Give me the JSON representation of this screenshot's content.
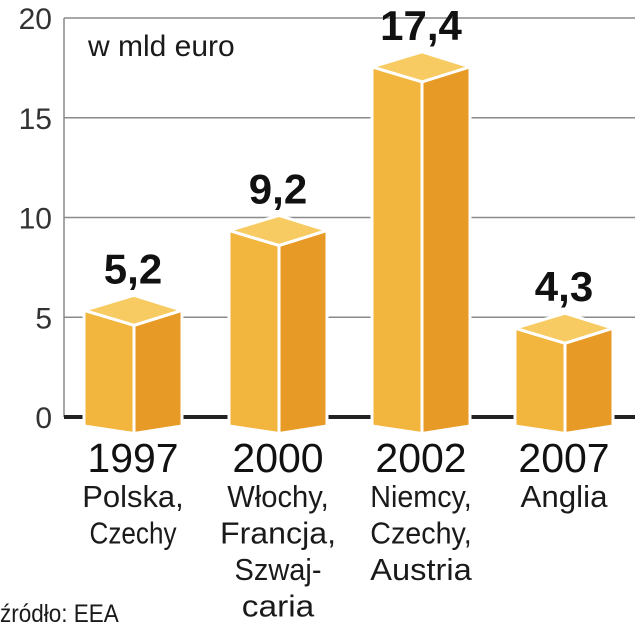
{
  "chart_data": {
    "type": "bar",
    "unit_label": "w mld euro",
    "categories": [
      "1997",
      "2000",
      "2002",
      "2007"
    ],
    "category_sublabels": [
      [
        "Polska,",
        "Czechy"
      ],
      [
        "Włochy,",
        "Francja,",
        "Szwaj-",
        "caria"
      ],
      [
        "Niemcy,",
        "Czechy,",
        "Austria"
      ],
      [
        "Anglia"
      ]
    ],
    "values": [
      5.2,
      9.2,
      17.4,
      4.3
    ],
    "value_labels": [
      "5,2",
      "9,2",
      "17,4",
      "4,3"
    ],
    "ylim": [
      0,
      20
    ],
    "yticks": [
      0,
      5,
      10,
      15,
      20
    ],
    "ytick_labels": [
      "0",
      "5",
      "10",
      "15",
      "20"
    ],
    "grid": true,
    "source": "źródło: EEA",
    "colors": {
      "front": "#F2B53D",
      "side": "#E89A26",
      "top": "#F7CB62",
      "grid": "#8a8a8a",
      "axis": "#222222"
    }
  }
}
